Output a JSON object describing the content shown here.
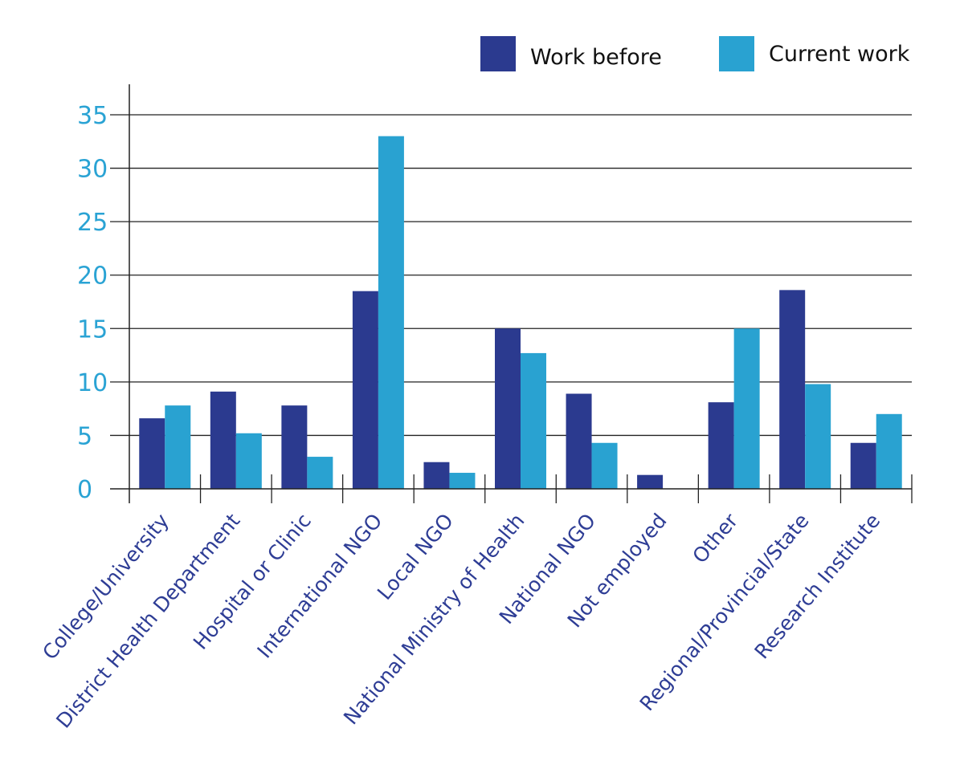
{
  "chart_data": {
    "type": "bar",
    "title": "",
    "xlabel": "",
    "ylabel": "",
    "ylim": [
      0,
      35
    ],
    "yticks": [
      0,
      5,
      10,
      15,
      20,
      25,
      30,
      35
    ],
    "grid": true,
    "legend_position": "top-right",
    "categories": [
      "College/University",
      "District Health Department",
      "Hospital or Clinic",
      "International NGO",
      "Local NGO",
      "National Ministry of Health",
      "National NGO",
      "Not employed",
      "Other",
      "Regional/Provincial/State",
      "Research Institute"
    ],
    "series": [
      {
        "name": "Work before",
        "color": "#2b3a8f",
        "values": [
          6.6,
          9.1,
          7.8,
          18.5,
          2.5,
          15,
          8.9,
          1.3,
          8.1,
          18.6,
          4.3
        ]
      },
      {
        "name": "Current work",
        "color": "#29a2d1",
        "values": [
          7.8,
          5.2,
          3.0,
          33,
          1.5,
          12.7,
          4.3,
          0,
          15,
          9.8,
          7.0
        ]
      }
    ]
  }
}
